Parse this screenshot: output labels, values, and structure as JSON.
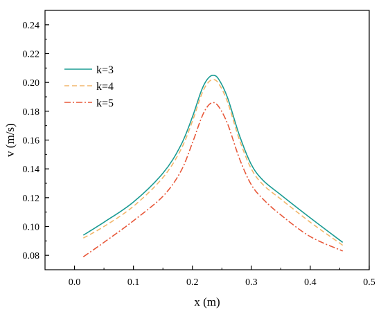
{
  "chart_data": {
    "type": "line",
    "title": "",
    "xlabel": "x (m)",
    "ylabel": "v (m/s)",
    "xlim": [
      -0.05,
      0.5
    ],
    "ylim": [
      0.07,
      0.25
    ],
    "xticks": [
      0.0,
      0.1,
      0.2,
      0.3,
      0.4,
      0.5
    ],
    "xtick_labels": [
      "0.0",
      "0.1",
      "0.2",
      "0.3",
      "0.4",
      "0.5"
    ],
    "yticks": [
      0.08,
      0.1,
      0.12,
      0.14,
      0.16,
      0.18,
      0.2,
      0.22,
      0.24
    ],
    "ytick_labels": [
      "0.08",
      "0.10",
      "0.12",
      "0.14",
      "0.16",
      "0.18",
      "0.20",
      "0.22",
      "0.24"
    ],
    "grid": false,
    "legend_position": "upper-left",
    "series": [
      {
        "name": "k=3",
        "color": "#1a9b93",
        "style": "solid",
        "x": [
          0.015,
          0.05,
          0.1,
          0.15,
          0.18,
          0.2,
          0.215,
          0.225,
          0.235,
          0.245,
          0.26,
          0.28,
          0.3,
          0.32,
          0.35,
          0.4,
          0.455
        ],
        "y": [
          0.094,
          0.103,
          0.117,
          0.137,
          0.156,
          0.176,
          0.194,
          0.202,
          0.205,
          0.202,
          0.189,
          0.163,
          0.143,
          0.132,
          0.122,
          0.106,
          0.089
        ]
      },
      {
        "name": "k=4",
        "color": "#f2b66b",
        "style": "dashed",
        "x": [
          0.015,
          0.05,
          0.1,
          0.15,
          0.18,
          0.2,
          0.215,
          0.225,
          0.235,
          0.245,
          0.26,
          0.28,
          0.3,
          0.32,
          0.35,
          0.4,
          0.455
        ],
        "y": [
          0.092,
          0.1,
          0.114,
          0.134,
          0.153,
          0.173,
          0.191,
          0.199,
          0.202,
          0.199,
          0.186,
          0.16,
          0.14,
          0.129,
          0.119,
          0.103,
          0.087
        ]
      },
      {
        "name": "k=5",
        "color": "#e8583a",
        "style": "dashdot",
        "x": [
          0.015,
          0.05,
          0.1,
          0.15,
          0.18,
          0.2,
          0.215,
          0.225,
          0.235,
          0.245,
          0.26,
          0.28,
          0.3,
          0.32,
          0.35,
          0.4,
          0.455
        ],
        "y": [
          0.079,
          0.089,
          0.104,
          0.121,
          0.138,
          0.158,
          0.175,
          0.183,
          0.186,
          0.183,
          0.171,
          0.147,
          0.129,
          0.119,
          0.108,
          0.093,
          0.083
        ]
      }
    ]
  }
}
